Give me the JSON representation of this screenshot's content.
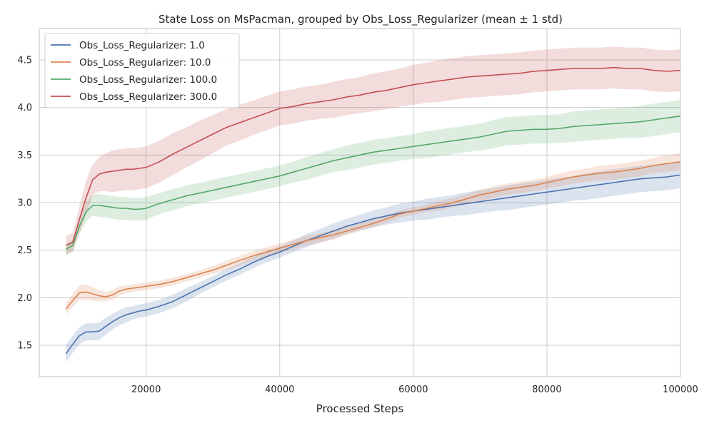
{
  "chart_data": {
    "type": "line",
    "title": "State Loss on MsPacman, grouped by Obs_Loss_Regularizer (mean ± 1 std)",
    "xlabel": "Processed Steps",
    "ylabel": "",
    "xlim": [
      4000,
      100000
    ],
    "ylim": [
      1.17,
      4.83
    ],
    "xticks": [
      20000,
      40000,
      60000,
      80000,
      100000
    ],
    "yticks": [
      1.5,
      2.0,
      2.5,
      3.0,
      3.5,
      4.0,
      4.5
    ],
    "grid": true,
    "legend_position": "top-left",
    "x": [
      8000,
      9000,
      10000,
      11000,
      12000,
      13000,
      14000,
      15000,
      16000,
      17000,
      18000,
      19000,
      20000,
      22000,
      24000,
      26000,
      28000,
      30000,
      32000,
      34000,
      36000,
      38000,
      40000,
      42000,
      44000,
      46000,
      48000,
      50000,
      52000,
      54000,
      56000,
      58000,
      60000,
      62000,
      64000,
      66000,
      68000,
      70000,
      72000,
      74000,
      76000,
      78000,
      80000,
      82000,
      84000,
      86000,
      88000,
      90000,
      92000,
      94000,
      96000,
      98000,
      100000
    ],
    "series": [
      {
        "name": "Obs_Loss_Regularizer: 1.0",
        "color": "#4c72b0",
        "values": [
          1.41,
          1.51,
          1.6,
          1.64,
          1.64,
          1.65,
          1.7,
          1.75,
          1.79,
          1.82,
          1.84,
          1.86,
          1.87,
          1.91,
          1.96,
          2.03,
          2.1,
          2.17,
          2.24,
          2.3,
          2.37,
          2.43,
          2.48,
          2.54,
          2.6,
          2.65,
          2.7,
          2.75,
          2.79,
          2.83,
          2.86,
          2.89,
          2.91,
          2.93,
          2.95,
          2.97,
          2.99,
          3.01,
          3.03,
          3.05,
          3.07,
          3.09,
          3.11,
          3.13,
          3.15,
          3.17,
          3.19,
          3.21,
          3.23,
          3.25,
          3.26,
          3.27,
          3.29
        ],
        "std": [
          0.09,
          0.09,
          0.09,
          0.09,
          0.09,
          0.09,
          0.09,
          0.08,
          0.08,
          0.08,
          0.07,
          0.07,
          0.07,
          0.07,
          0.07,
          0.07,
          0.06,
          0.06,
          0.06,
          0.06,
          0.06,
          0.06,
          0.06,
          0.06,
          0.07,
          0.07,
          0.08,
          0.08,
          0.08,
          0.09,
          0.09,
          0.1,
          0.1,
          0.11,
          0.11,
          0.11,
          0.12,
          0.12,
          0.12,
          0.13,
          0.13,
          0.13,
          0.13,
          0.13,
          0.13,
          0.14,
          0.14,
          0.14,
          0.14,
          0.14,
          0.14,
          0.14,
          0.14
        ]
      },
      {
        "name": "Obs_Loss_Regularizer: 10.0",
        "color": "#dd8452",
        "values": [
          1.88,
          1.97,
          2.05,
          2.06,
          2.04,
          2.02,
          2.01,
          2.03,
          2.07,
          2.09,
          2.1,
          2.11,
          2.12,
          2.14,
          2.17,
          2.21,
          2.25,
          2.29,
          2.34,
          2.39,
          2.44,
          2.48,
          2.52,
          2.56,
          2.6,
          2.63,
          2.66,
          2.7,
          2.74,
          2.78,
          2.83,
          2.88,
          2.91,
          2.94,
          2.97,
          3.0,
          3.04,
          3.08,
          3.11,
          3.14,
          3.16,
          3.18,
          3.21,
          3.24,
          3.27,
          3.29,
          3.31,
          3.32,
          3.34,
          3.36,
          3.39,
          3.41,
          3.43
        ],
        "std": [
          0.06,
          0.07,
          0.08,
          0.08,
          0.07,
          0.06,
          0.05,
          0.05,
          0.05,
          0.04,
          0.04,
          0.04,
          0.04,
          0.04,
          0.04,
          0.04,
          0.04,
          0.04,
          0.05,
          0.05,
          0.05,
          0.05,
          0.05,
          0.05,
          0.05,
          0.05,
          0.05,
          0.04,
          0.04,
          0.04,
          0.04,
          0.04,
          0.04,
          0.04,
          0.05,
          0.05,
          0.05,
          0.06,
          0.06,
          0.06,
          0.06,
          0.06,
          0.06,
          0.07,
          0.07,
          0.07,
          0.08,
          0.08,
          0.08,
          0.08,
          0.08,
          0.09,
          0.09
        ]
      },
      {
        "name": "Obs_Loss_Regularizer: 100.0",
        "color": "#55a868",
        "values": [
          2.51,
          2.55,
          2.75,
          2.9,
          2.97,
          2.97,
          2.96,
          2.95,
          2.94,
          2.94,
          2.93,
          2.93,
          2.94,
          2.99,
          3.03,
          3.07,
          3.1,
          3.13,
          3.16,
          3.19,
          3.22,
          3.25,
          3.28,
          3.32,
          3.36,
          3.4,
          3.44,
          3.47,
          3.5,
          3.53,
          3.55,
          3.57,
          3.59,
          3.61,
          3.63,
          3.65,
          3.67,
          3.69,
          3.72,
          3.75,
          3.76,
          3.77,
          3.77,
          3.78,
          3.8,
          3.81,
          3.82,
          3.83,
          3.84,
          3.85,
          3.87,
          3.89,
          3.91
        ],
        "std": [
          0.06,
          0.06,
          0.08,
          0.1,
          0.11,
          0.12,
          0.12,
          0.12,
          0.12,
          0.12,
          0.12,
          0.12,
          0.12,
          0.11,
          0.11,
          0.11,
          0.11,
          0.11,
          0.11,
          0.11,
          0.11,
          0.11,
          0.11,
          0.11,
          0.12,
          0.12,
          0.12,
          0.13,
          0.13,
          0.13,
          0.13,
          0.13,
          0.13,
          0.14,
          0.14,
          0.14,
          0.14,
          0.14,
          0.15,
          0.15,
          0.15,
          0.15,
          0.15,
          0.15,
          0.16,
          0.16,
          0.16,
          0.16,
          0.16,
          0.17,
          0.17,
          0.17,
          0.17
        ]
      },
      {
        "name": "Obs_Loss_Regularizer: 300.0",
        "color": "#c44e52",
        "values": [
          2.55,
          2.58,
          2.82,
          3.05,
          3.24,
          3.3,
          3.32,
          3.33,
          3.34,
          3.35,
          3.35,
          3.36,
          3.37,
          3.43,
          3.51,
          3.58,
          3.65,
          3.72,
          3.79,
          3.84,
          3.89,
          3.94,
          3.99,
          4.01,
          4.04,
          4.06,
          4.08,
          4.11,
          4.13,
          4.16,
          4.18,
          4.21,
          4.24,
          4.26,
          4.28,
          4.3,
          4.32,
          4.33,
          4.34,
          4.35,
          4.36,
          4.38,
          4.39,
          4.4,
          4.41,
          4.41,
          4.41,
          4.42,
          4.41,
          4.41,
          4.39,
          4.38,
          4.39
        ],
        "std": [
          0.1,
          0.1,
          0.14,
          0.18,
          0.16,
          0.18,
          0.2,
          0.22,
          0.22,
          0.22,
          0.22,
          0.22,
          0.22,
          0.22,
          0.22,
          0.21,
          0.21,
          0.2,
          0.19,
          0.19,
          0.18,
          0.18,
          0.18,
          0.18,
          0.18,
          0.18,
          0.19,
          0.19,
          0.19,
          0.2,
          0.2,
          0.2,
          0.21,
          0.21,
          0.22,
          0.22,
          0.22,
          0.22,
          0.22,
          0.22,
          0.22,
          0.22,
          0.22,
          0.22,
          0.22,
          0.22,
          0.22,
          0.22,
          0.22,
          0.22,
          0.22,
          0.22,
          0.22
        ]
      }
    ]
  }
}
